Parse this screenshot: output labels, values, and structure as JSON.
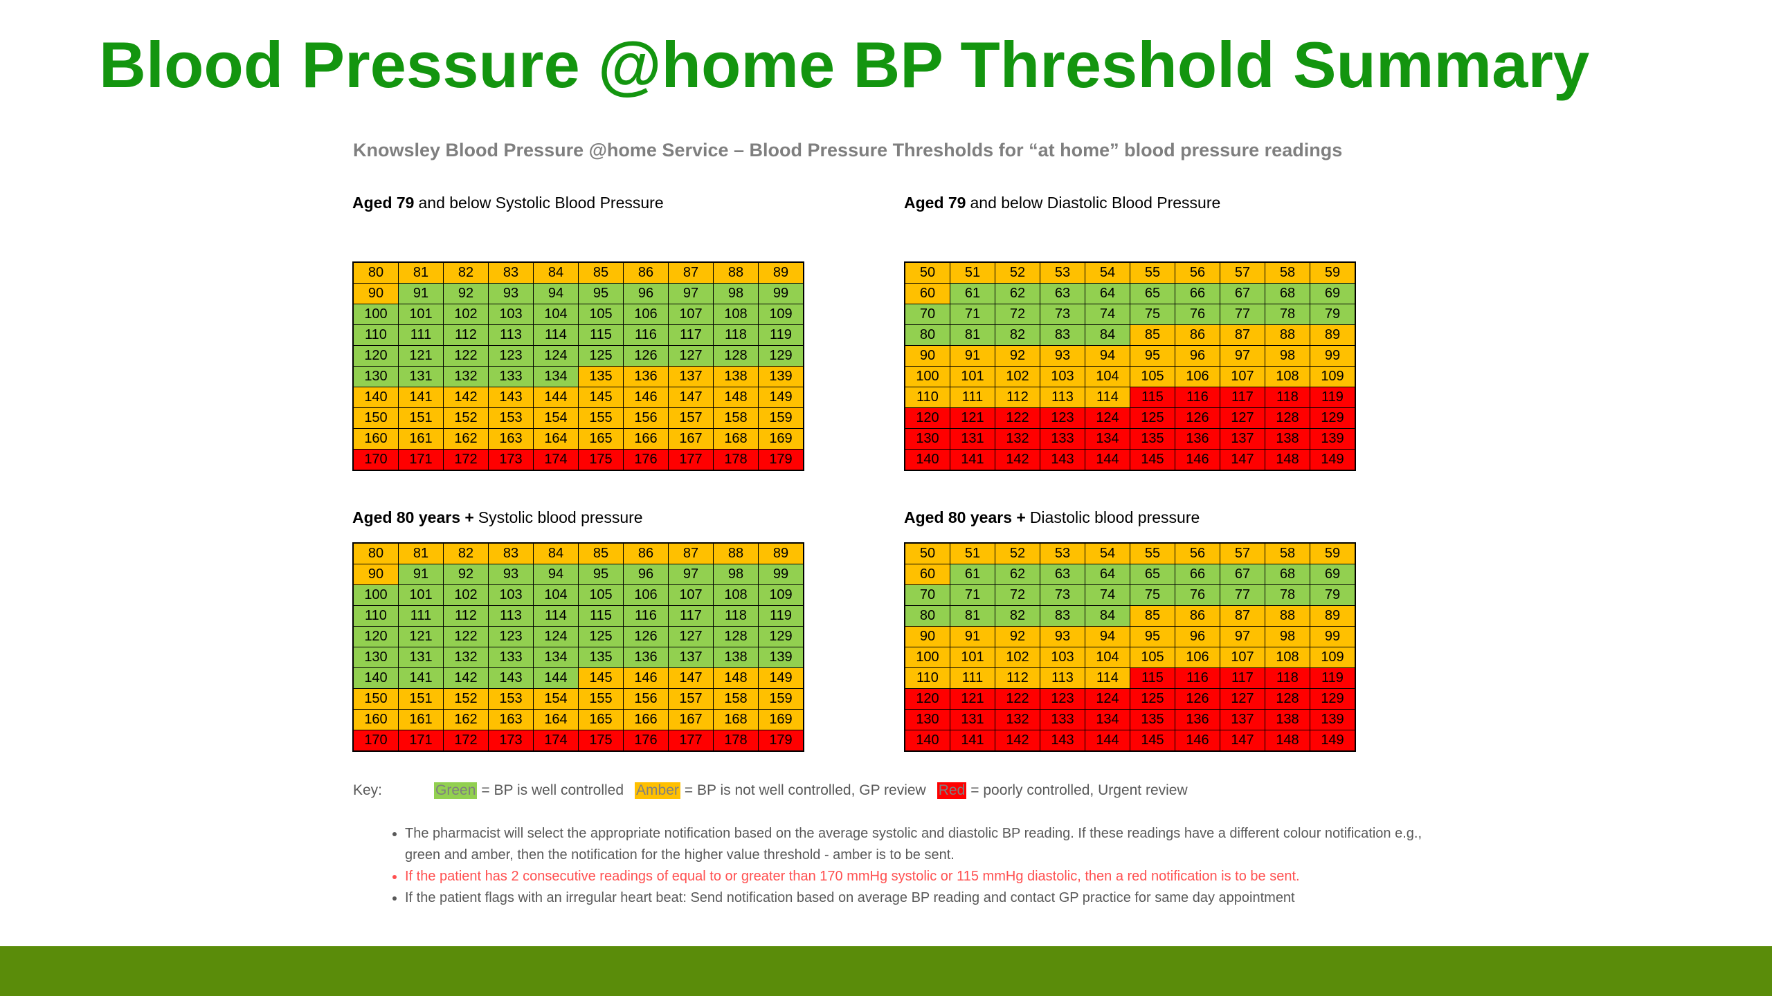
{
  "header": {
    "title": "Blood Pressure @home BP Threshold Summary",
    "subtitle": "Knowsley Blood Pressure @home Service – Blood Pressure Thresholds for “at home” blood pressure readings"
  },
  "palette": {
    "g": "#92d050",
    "a": "#ffc000",
    "r": "#ff0000"
  },
  "tables": [
    {
      "bold": "Aged 79",
      "heading": "and below Systolic Blood Pressure",
      "rows": [
        [
          80,
          81,
          82,
          83,
          84,
          85,
          86,
          87,
          88,
          89
        ],
        [
          90,
          91,
          92,
          93,
          94,
          95,
          96,
          97,
          98,
          99
        ],
        [
          100,
          101,
          102,
          103,
          104,
          105,
          106,
          107,
          108,
          109
        ],
        [
          110,
          111,
          112,
          113,
          114,
          115,
          116,
          117,
          118,
          119
        ],
        [
          120,
          121,
          122,
          123,
          124,
          125,
          126,
          127,
          128,
          129
        ],
        [
          130,
          131,
          132,
          133,
          134,
          135,
          136,
          137,
          138,
          139
        ],
        [
          140,
          141,
          142,
          143,
          144,
          145,
          146,
          147,
          148,
          149
        ],
        [
          150,
          151,
          152,
          153,
          154,
          155,
          156,
          157,
          158,
          159
        ],
        [
          160,
          161,
          162,
          163,
          164,
          165,
          166,
          167,
          168,
          169
        ],
        [
          170,
          171,
          172,
          173,
          174,
          175,
          176,
          177,
          178,
          179
        ]
      ],
      "colors": [
        [
          "a",
          "a",
          "a",
          "a",
          "a",
          "a",
          "a",
          "a",
          "a",
          "a"
        ],
        [
          "a",
          "g",
          "g",
          "g",
          "g",
          "g",
          "g",
          "g",
          "g",
          "g"
        ],
        [
          "g",
          "g",
          "g",
          "g",
          "g",
          "g",
          "g",
          "g",
          "g",
          "g"
        ],
        [
          "g",
          "g",
          "g",
          "g",
          "g",
          "g",
          "g",
          "g",
          "g",
          "g"
        ],
        [
          "g",
          "g",
          "g",
          "g",
          "g",
          "g",
          "g",
          "g",
          "g",
          "g"
        ],
        [
          "g",
          "g",
          "g",
          "g",
          "g",
          "a",
          "a",
          "a",
          "a",
          "a"
        ],
        [
          "a",
          "a",
          "a",
          "a",
          "a",
          "a",
          "a",
          "a",
          "a",
          "a"
        ],
        [
          "a",
          "a",
          "a",
          "a",
          "a",
          "a",
          "a",
          "a",
          "a",
          "a"
        ],
        [
          "a",
          "a",
          "a",
          "a",
          "a",
          "a",
          "a",
          "a",
          "a",
          "a"
        ],
        [
          "r",
          "r",
          "r",
          "r",
          "r",
          "r",
          "r",
          "r",
          "r",
          "r"
        ]
      ]
    },
    {
      "bold": "Aged 79",
      "heading": "and below Diastolic Blood Pressure",
      "rows": [
        [
          50,
          51,
          52,
          53,
          54,
          55,
          56,
          57,
          58,
          59
        ],
        [
          60,
          61,
          62,
          63,
          64,
          65,
          66,
          67,
          68,
          69
        ],
        [
          70,
          71,
          72,
          73,
          74,
          75,
          76,
          77,
          78,
          79
        ],
        [
          80,
          81,
          82,
          83,
          84,
          85,
          86,
          87,
          88,
          89
        ],
        [
          90,
          91,
          92,
          93,
          94,
          95,
          96,
          97,
          98,
          99
        ],
        [
          100,
          101,
          102,
          103,
          104,
          105,
          106,
          107,
          108,
          109
        ],
        [
          110,
          111,
          112,
          113,
          114,
          115,
          116,
          117,
          118,
          119
        ],
        [
          120,
          121,
          122,
          123,
          124,
          125,
          126,
          127,
          128,
          129
        ],
        [
          130,
          131,
          132,
          133,
          134,
          135,
          136,
          137,
          138,
          139
        ],
        [
          140,
          141,
          142,
          143,
          144,
          145,
          146,
          147,
          148,
          149
        ]
      ],
      "colors": [
        [
          "a",
          "a",
          "a",
          "a",
          "a",
          "a",
          "a",
          "a",
          "a",
          "a"
        ],
        [
          "a",
          "g",
          "g",
          "g",
          "g",
          "g",
          "g",
          "g",
          "g",
          "g"
        ],
        [
          "g",
          "g",
          "g",
          "g",
          "g",
          "g",
          "g",
          "g",
          "g",
          "g"
        ],
        [
          "g",
          "g",
          "g",
          "g",
          "g",
          "a",
          "a",
          "a",
          "a",
          "a"
        ],
        [
          "a",
          "a",
          "a",
          "a",
          "a",
          "a",
          "a",
          "a",
          "a",
          "a"
        ],
        [
          "a",
          "a",
          "a",
          "a",
          "a",
          "a",
          "a",
          "a",
          "a",
          "a"
        ],
        [
          "a",
          "a",
          "a",
          "a",
          "a",
          "r",
          "r",
          "r",
          "r",
          "r"
        ],
        [
          "r",
          "r",
          "r",
          "r",
          "r",
          "r",
          "r",
          "r",
          "r",
          "r"
        ],
        [
          "r",
          "r",
          "r",
          "r",
          "r",
          "r",
          "r",
          "r",
          "r",
          "r"
        ],
        [
          "r",
          "r",
          "r",
          "r",
          "r",
          "r",
          "r",
          "r",
          "r",
          "r"
        ]
      ]
    },
    {
      "bold": "Aged 80 years +",
      "heading": "Systolic blood pressure",
      "rows": [
        [
          80,
          81,
          82,
          83,
          84,
          85,
          86,
          87,
          88,
          89
        ],
        [
          90,
          91,
          92,
          93,
          94,
          95,
          96,
          97,
          98,
          99
        ],
        [
          100,
          101,
          102,
          103,
          104,
          105,
          106,
          107,
          108,
          109
        ],
        [
          110,
          111,
          112,
          113,
          114,
          115,
          116,
          117,
          118,
          119
        ],
        [
          120,
          121,
          122,
          123,
          124,
          125,
          126,
          127,
          128,
          129
        ],
        [
          130,
          131,
          132,
          133,
          134,
          135,
          136,
          137,
          138,
          139
        ],
        [
          140,
          141,
          142,
          143,
          144,
          145,
          146,
          147,
          148,
          149
        ],
        [
          150,
          151,
          152,
          153,
          154,
          155,
          156,
          157,
          158,
          159
        ],
        [
          160,
          161,
          162,
          163,
          164,
          165,
          166,
          167,
          168,
          169
        ],
        [
          170,
          171,
          172,
          173,
          174,
          175,
          176,
          177,
          178,
          179
        ]
      ],
      "colors": [
        [
          "a",
          "a",
          "a",
          "a",
          "a",
          "a",
          "a",
          "a",
          "a",
          "a"
        ],
        [
          "a",
          "g",
          "g",
          "g",
          "g",
          "g",
          "g",
          "g",
          "g",
          "g"
        ],
        [
          "g",
          "g",
          "g",
          "g",
          "g",
          "g",
          "g",
          "g",
          "g",
          "g"
        ],
        [
          "g",
          "g",
          "g",
          "g",
          "g",
          "g",
          "g",
          "g",
          "g",
          "g"
        ],
        [
          "g",
          "g",
          "g",
          "g",
          "g",
          "g",
          "g",
          "g",
          "g",
          "g"
        ],
        [
          "g",
          "g",
          "g",
          "g",
          "g",
          "g",
          "g",
          "g",
          "g",
          "g"
        ],
        [
          "g",
          "g",
          "g",
          "g",
          "g",
          "a",
          "a",
          "a",
          "a",
          "a"
        ],
        [
          "a",
          "a",
          "a",
          "a",
          "a",
          "a",
          "a",
          "a",
          "a",
          "a"
        ],
        [
          "a",
          "a",
          "a",
          "a",
          "a",
          "a",
          "a",
          "a",
          "a",
          "a"
        ],
        [
          "r",
          "r",
          "r",
          "r",
          "r",
          "r",
          "r",
          "r",
          "r",
          "r"
        ]
      ]
    },
    {
      "bold": "Aged 80 years +",
      "heading": "Diastolic blood pressure",
      "rows": [
        [
          50,
          51,
          52,
          53,
          54,
          55,
          56,
          57,
          58,
          59
        ],
        [
          60,
          61,
          62,
          63,
          64,
          65,
          66,
          67,
          68,
          69
        ],
        [
          70,
          71,
          72,
          73,
          74,
          75,
          76,
          77,
          78,
          79
        ],
        [
          80,
          81,
          82,
          83,
          84,
          85,
          86,
          87,
          88,
          89
        ],
        [
          90,
          91,
          92,
          93,
          94,
          95,
          96,
          97,
          98,
          99
        ],
        [
          100,
          101,
          102,
          103,
          104,
          105,
          106,
          107,
          108,
          109
        ],
        [
          110,
          111,
          112,
          113,
          114,
          115,
          116,
          117,
          118,
          119
        ],
        [
          120,
          121,
          122,
          123,
          124,
          125,
          126,
          127,
          128,
          129
        ],
        [
          130,
          131,
          132,
          133,
          134,
          135,
          136,
          137,
          138,
          139
        ],
        [
          140,
          141,
          142,
          143,
          144,
          145,
          146,
          147,
          148,
          149
        ]
      ],
      "colors": [
        [
          "a",
          "a",
          "a",
          "a",
          "a",
          "a",
          "a",
          "a",
          "a",
          "a"
        ],
        [
          "a",
          "g",
          "g",
          "g",
          "g",
          "g",
          "g",
          "g",
          "g",
          "g"
        ],
        [
          "g",
          "g",
          "g",
          "g",
          "g",
          "g",
          "g",
          "g",
          "g",
          "g"
        ],
        [
          "g",
          "g",
          "g",
          "g",
          "g",
          "a",
          "a",
          "a",
          "a",
          "a"
        ],
        [
          "a",
          "a",
          "a",
          "a",
          "a",
          "a",
          "a",
          "a",
          "a",
          "a"
        ],
        [
          "a",
          "a",
          "a",
          "a",
          "a",
          "a",
          "a",
          "a",
          "a",
          "a"
        ],
        [
          "a",
          "a",
          "a",
          "a",
          "a",
          "r",
          "r",
          "r",
          "r",
          "r"
        ],
        [
          "r",
          "r",
          "r",
          "r",
          "r",
          "r",
          "r",
          "r",
          "r",
          "r"
        ],
        [
          "r",
          "r",
          "r",
          "r",
          "r",
          "r",
          "r",
          "r",
          "r",
          "r"
        ],
        [
          "r",
          "r",
          "r",
          "r",
          "r",
          "r",
          "r",
          "r",
          "r",
          "r"
        ]
      ]
    }
  ],
  "key": {
    "label": "Key:",
    "items": [
      {
        "swatch": "Green",
        "color": "g",
        "text": "= BP is well controlled"
      },
      {
        "swatch": "Amber",
        "color": "a",
        "text": "= BP is not well controlled, GP review"
      },
      {
        "swatch": "Red",
        "color": "r",
        "text": "= poorly controlled, Urgent review"
      }
    ]
  },
  "notes": [
    {
      "text": "The pharmacist will select the appropriate notification based on the average systolic and diastolic BP reading. If these readings have a different colour notification e.g., green and amber, then the notification for the higher value threshold - amber is to be sent.",
      "color": "#595959"
    },
    {
      "text": "If the patient has 2 consecutive readings of equal to or greater than 170 mmHg systolic or 115 mmHg diastolic, then a red notification is to be sent.",
      "color": "#ff5050"
    },
    {
      "text": "If the patient flags with an irregular heart beat: Send notification based on average BP reading and contact GP practice for same day appointment",
      "color": "#595959"
    }
  ]
}
